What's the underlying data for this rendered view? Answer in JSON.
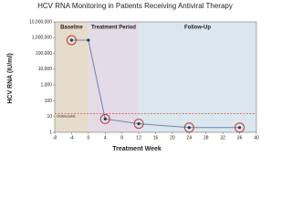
{
  "chart_data": {
    "type": "line",
    "title": "HCV RNA Monitoring in Patients Receiving Antiviral Therapy",
    "x_label": "Treatment Week",
    "y_label": "HCV RNA (IU/ml)",
    "x": [
      -4,
      0,
      4,
      12,
      24,
      36
    ],
    "values": [
      700000,
      700000,
      7,
      3.5,
      2,
      2
    ],
    "highlighted": [
      true,
      false,
      true,
      true,
      true,
      true
    ],
    "color": "#1f3a6e",
    "highlight_color": "#c0392b",
    "log_y": true,
    "xlim": [
      -8,
      40
    ],
    "xticks": [
      -8,
      -4,
      0,
      4,
      8,
      12,
      16,
      20,
      24,
      28,
      32,
      36,
      40
    ],
    "ylim": [
      1,
      10000000
    ],
    "yticks": [
      1,
      10,
      100,
      {
        "value": 1000,
        "label": "1,000"
      },
      {
        "value": 10000,
        "label": "10,000"
      },
      {
        "value": 100000,
        "label": "100,000"
      },
      {
        "value": 1000000,
        "label": "1,000,000"
      },
      {
        "value": 10000000,
        "label": "10,000,000"
      }
    ],
    "regions": [
      {
        "label": "Baseline",
        "start": -8,
        "end": 0,
        "color": "#e6dccb"
      },
      {
        "label": "Treatment Period",
        "start": 0,
        "end": 12,
        "color": "#e3dbe8"
      },
      {
        "label": "Follow-Up",
        "start": 12,
        "end": 40,
        "color": "#dbe6ee"
      }
    ],
    "reference_line": {
      "value": 15,
      "label": "Undetectable",
      "color": "#c0392b"
    }
  }
}
